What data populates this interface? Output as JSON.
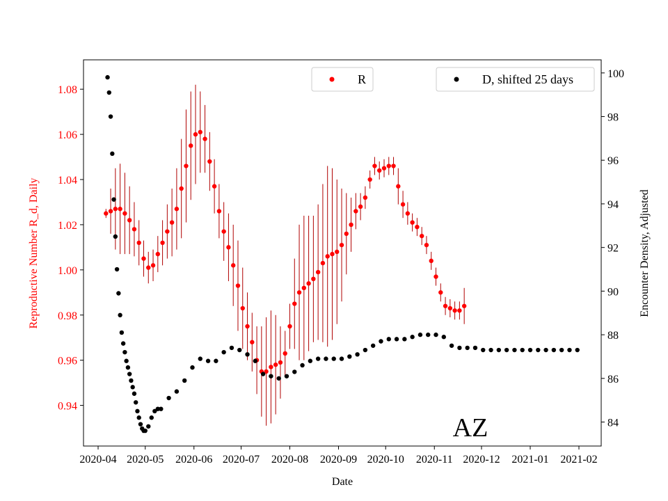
{
  "chart_data": {
    "type": "scatter",
    "xlabel": "Date",
    "ylabel_left": "Reproductive Number R_d, Daily",
    "ylabel_right": "Encounter Density, Adjusted",
    "xlim": [
      0,
      315
    ],
    "ylim_left": [
      0.922,
      1.093
    ],
    "ylim_right": [
      82.9,
      100.6
    ],
    "x_ticks": [
      {
        "day": 0,
        "label": "2020-04"
      },
      {
        "day": 30,
        "label": "2020-05"
      },
      {
        "day": 61,
        "label": "2020-06"
      },
      {
        "day": 91,
        "label": "2020-07"
      },
      {
        "day": 122,
        "label": "2020-08"
      },
      {
        "day": 153,
        "label": "2020-09"
      },
      {
        "day": 183,
        "label": "2020-10"
      },
      {
        "day": 214,
        "label": "2020-11"
      },
      {
        "day": 244,
        "label": "2020-12"
      },
      {
        "day": 275,
        "label": "2021-01"
      },
      {
        "day": 306,
        "label": "2021-02"
      }
    ],
    "y_ticks_left": [
      {
        "value": 0.94,
        "label": "0.94"
      },
      {
        "value": 0.96,
        "label": "0.96"
      },
      {
        "value": 0.98,
        "label": "0.98"
      },
      {
        "value": 1.0,
        "label": "1.00"
      },
      {
        "value": 1.02,
        "label": "1.02"
      },
      {
        "value": 1.04,
        "label": "1.04"
      },
      {
        "value": 1.06,
        "label": "1.06"
      },
      {
        "value": 1.08,
        "label": "1.08"
      }
    ],
    "y_ticks_right": [
      {
        "value": 84,
        "label": "84"
      },
      {
        "value": 86,
        "label": "86"
      },
      {
        "value": 88,
        "label": "88"
      },
      {
        "value": 90,
        "label": "90"
      },
      {
        "value": 92,
        "label": "92"
      },
      {
        "value": 94,
        "label": "94"
      },
      {
        "value": 96,
        "label": "96"
      },
      {
        "value": 98,
        "label": "98"
      },
      {
        "value": 100,
        "label": "100"
      }
    ],
    "legend_left": {
      "label": "R",
      "placement": "top-center",
      "color": "#ff0000"
    },
    "legend_right": {
      "label": "D, shifted 25 days",
      "placement": "top-right",
      "color": "#000000"
    },
    "annotation": "AZ",
    "r_color": "#ff0000",
    "errorbar_color": "#b00000",
    "d_color": "#000000",
    "series": [
      {
        "name": "R",
        "axis": "left",
        "style": "dot-with-errorbars",
        "x": [
          5,
          8,
          11,
          14,
          17,
          20,
          23,
          26,
          29,
          32,
          35,
          38,
          41,
          44,
          47,
          50,
          53,
          56,
          59,
          62,
          65,
          68,
          71,
          74,
          77,
          80,
          83,
          86,
          89,
          92,
          95,
          98,
          101,
          104,
          107,
          110,
          113,
          116,
          119,
          122,
          125,
          128,
          131,
          134,
          137,
          140,
          143,
          146,
          149,
          152,
          155,
          158,
          161,
          164,
          167,
          170,
          173,
          176,
          179,
          182,
          185,
          188,
          191,
          194,
          197,
          200,
          203,
          206,
          209,
          212,
          215,
          218,
          221,
          224,
          227,
          230,
          233
        ],
        "values": [
          1.025,
          1.026,
          1.027,
          1.027,
          1.025,
          1.022,
          1.018,
          1.012,
          1.005,
          1.001,
          1.002,
          1.007,
          1.012,
          1.017,
          1.021,
          1.027,
          1.036,
          1.046,
          1.055,
          1.06,
          1.061,
          1.058,
          1.048,
          1.037,
          1.026,
          1.017,
          1.01,
          1.002,
          0.993,
          0.983,
          0.975,
          0.968,
          0.96,
          0.955,
          0.955,
          0.957,
          0.958,
          0.959,
          0.963,
          0.975,
          0.985,
          0.99,
          0.992,
          0.994,
          0.996,
          0.999,
          1.003,
          1.006,
          1.007,
          1.008,
          1.011,
          1.016,
          1.02,
          1.026,
          1.028,
          1.032,
          1.04,
          1.046,
          1.044,
          1.045,
          1.046,
          1.046,
          1.037,
          1.029,
          1.025,
          1.021,
          1.019,
          1.015,
          1.011,
          1.004,
          0.997,
          0.99,
          0.984,
          0.983,
          0.982,
          0.982,
          0.984
        ],
        "errors": [
          0.002,
          0.01,
          0.018,
          0.02,
          0.018,
          0.015,
          0.012,
          0.01,
          0.008,
          0.007,
          0.007,
          0.008,
          0.01,
          0.012,
          0.015,
          0.018,
          0.022,
          0.025,
          0.024,
          0.022,
          0.018,
          0.015,
          0.013,
          0.012,
          0.012,
          0.013,
          0.015,
          0.018,
          0.02,
          0.018,
          0.015,
          0.013,
          0.015,
          0.02,
          0.024,
          0.025,
          0.022,
          0.016,
          0.01,
          0.01,
          0.02,
          0.03,
          0.032,
          0.03,
          0.028,
          0.03,
          0.035,
          0.04,
          0.038,
          0.032,
          0.025,
          0.018,
          0.012,
          0.008,
          0.006,
          0.005,
          0.004,
          0.004,
          0.004,
          0.004,
          0.004,
          0.004,
          0.008,
          0.006,
          0.005,
          0.004,
          0.004,
          0.004,
          0.004,
          0.004,
          0.004,
          0.004,
          0.004,
          0.004,
          0.004,
          0.004,
          0.008
        ]
      },
      {
        "name": "D, shifted 25 days",
        "axis": "right",
        "style": "dot",
        "x": [
          6,
          7,
          8,
          9,
          10,
          11,
          12,
          13,
          14,
          15,
          16,
          17,
          18,
          19,
          20,
          21,
          22,
          23,
          24,
          25,
          26,
          27,
          28,
          29,
          30,
          32,
          34,
          36,
          38,
          40,
          45,
          50,
          55,
          60,
          65,
          70,
          75,
          80,
          85,
          90,
          95,
          100,
          105,
          110,
          115,
          120,
          125,
          130,
          135,
          140,
          145,
          150,
          155,
          160,
          165,
          170,
          175,
          180,
          185,
          190,
          195,
          200,
          205,
          210,
          215,
          220,
          225,
          230,
          235,
          240,
          245,
          250,
          255,
          260,
          265,
          270,
          275,
          280,
          285,
          290,
          295,
          300,
          305
        ],
        "values": [
          99.8,
          99.1,
          98.0,
          96.3,
          94.2,
          92.5,
          91.0,
          89.9,
          88.9,
          88.1,
          87.6,
          87.2,
          86.8,
          86.5,
          86.2,
          85.9,
          85.6,
          85.3,
          84.9,
          84.5,
          84.2,
          83.9,
          83.7,
          83.6,
          83.6,
          83.8,
          84.2,
          84.5,
          84.6,
          84.6,
          85.1,
          85.4,
          85.9,
          86.5,
          86.9,
          86.8,
          86.8,
          87.2,
          87.4,
          87.3,
          87.1,
          86.8,
          86.2,
          86.1,
          86.0,
          86.1,
          86.3,
          86.6,
          86.8,
          86.9,
          86.9,
          86.9,
          86.9,
          87.0,
          87.1,
          87.3,
          87.5,
          87.7,
          87.8,
          87.8,
          87.8,
          87.9,
          88.0,
          88.0,
          88.0,
          87.9,
          87.5,
          87.4,
          87.4,
          87.4,
          87.3,
          87.3,
          87.3,
          87.3,
          87.3,
          87.3,
          87.3,
          87.3,
          87.3,
          87.3,
          87.3,
          87.3,
          87.3
        ]
      }
    ]
  }
}
